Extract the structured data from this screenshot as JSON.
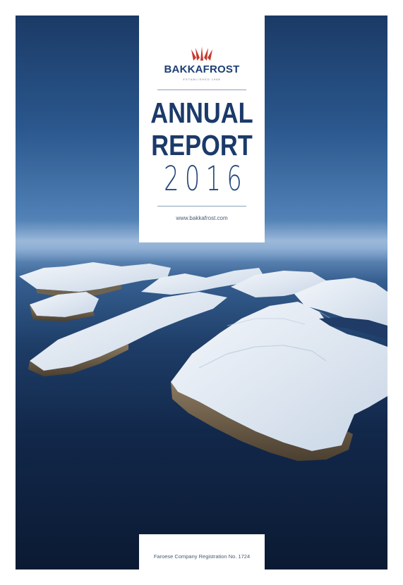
{
  "brand": {
    "name": "BAKKAFROST",
    "established": "ESTABLISHED 1968",
    "logo_icon": "crown-icon",
    "accent_color": "#c8372f"
  },
  "title": {
    "line1": "ANNUAL",
    "line2": "REPORT",
    "year": "2016"
  },
  "website": "www.bakkafrost.com",
  "registration": "Faroese Company Registration No. 1724",
  "colors": {
    "title": "#1b3a6a",
    "ocean_dark": "#0b1a33",
    "sky": "#4f7fb4"
  }
}
